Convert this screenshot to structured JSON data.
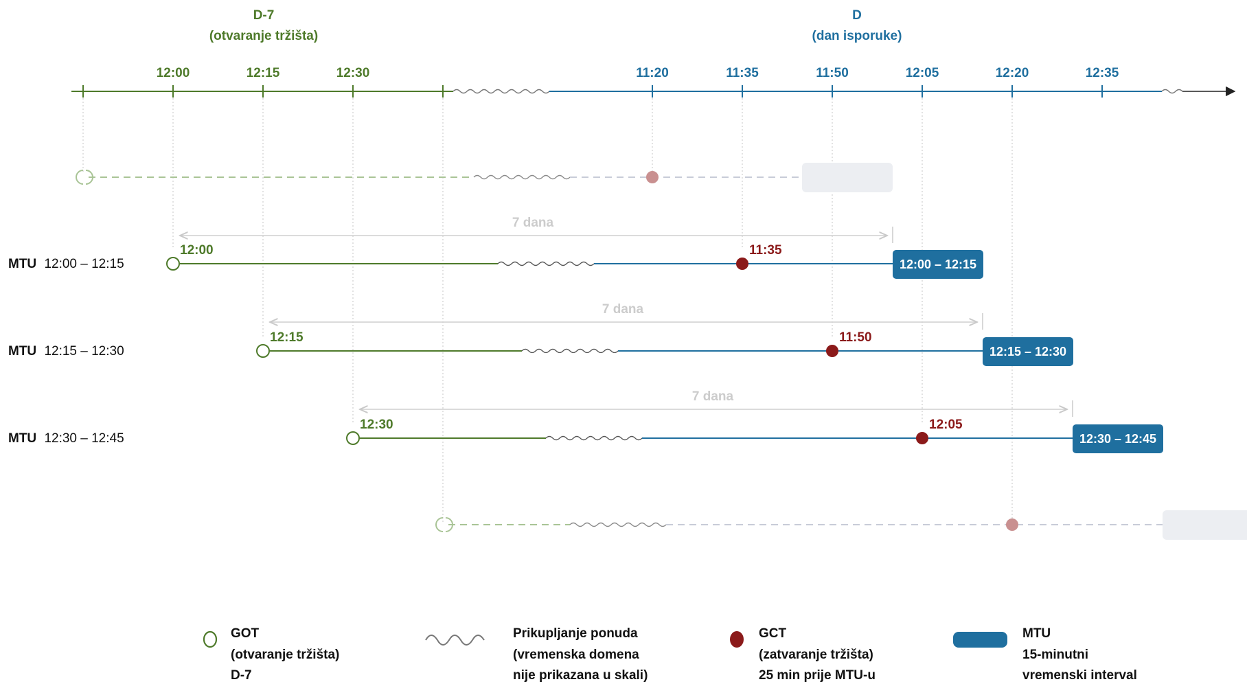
{
  "header": {
    "left": {
      "title": "D-7",
      "subtitle": "(otvaranje tržišta)"
    },
    "right": {
      "title": "D",
      "subtitle": "(dan isporuke)"
    }
  },
  "axis": {
    "left_ticks": [
      "12:00",
      "12:15",
      "12:30"
    ],
    "right_ticks": [
      "11:20",
      "11:35",
      "11:50",
      "12:05",
      "12:20",
      "12:35"
    ]
  },
  "rows": [
    {
      "label_bold": "MTU",
      "label_range": "12:00 – 12:15",
      "got_time": "12:00",
      "gct_time": "11:35",
      "mtu_box": "12:00 – 12:15",
      "span_label": "7 dana"
    },
    {
      "label_bold": "MTU",
      "label_range": "12:15 – 12:30",
      "got_time": "12:15",
      "gct_time": "11:50",
      "mtu_box": "12:15 – 12:30",
      "span_label": "7 dana"
    },
    {
      "label_bold": "MTU",
      "label_range": "12:30 – 12:45",
      "got_time": "12:30",
      "gct_time": "12:05",
      "mtu_box": "12:30 – 12:45",
      "span_label": "7 dana"
    }
  ],
  "legend": [
    {
      "icon": "got-circle-icon",
      "lines": [
        "GOT",
        "(otvaranje tržišta)",
        "D-7"
      ]
    },
    {
      "icon": "wave-icon",
      "lines": [
        "Prikupljanje ponuda",
        "(vremenska domena",
        "nije prikazana u skali)"
      ]
    },
    {
      "icon": "gct-dot-icon",
      "lines": [
        "GCT",
        "(zatvaranje tržišta)",
        "25 min prije MTU-u"
      ]
    },
    {
      "icon": "mtu-bar-icon",
      "lines": [
        "MTU",
        "15-minutni",
        "vremenski interval"
      ]
    }
  ],
  "colors": {
    "green": "#4e7a2a",
    "blue": "#1f6f9f",
    "red": "#8b1a1a",
    "grey": "#d6d9dd"
  }
}
